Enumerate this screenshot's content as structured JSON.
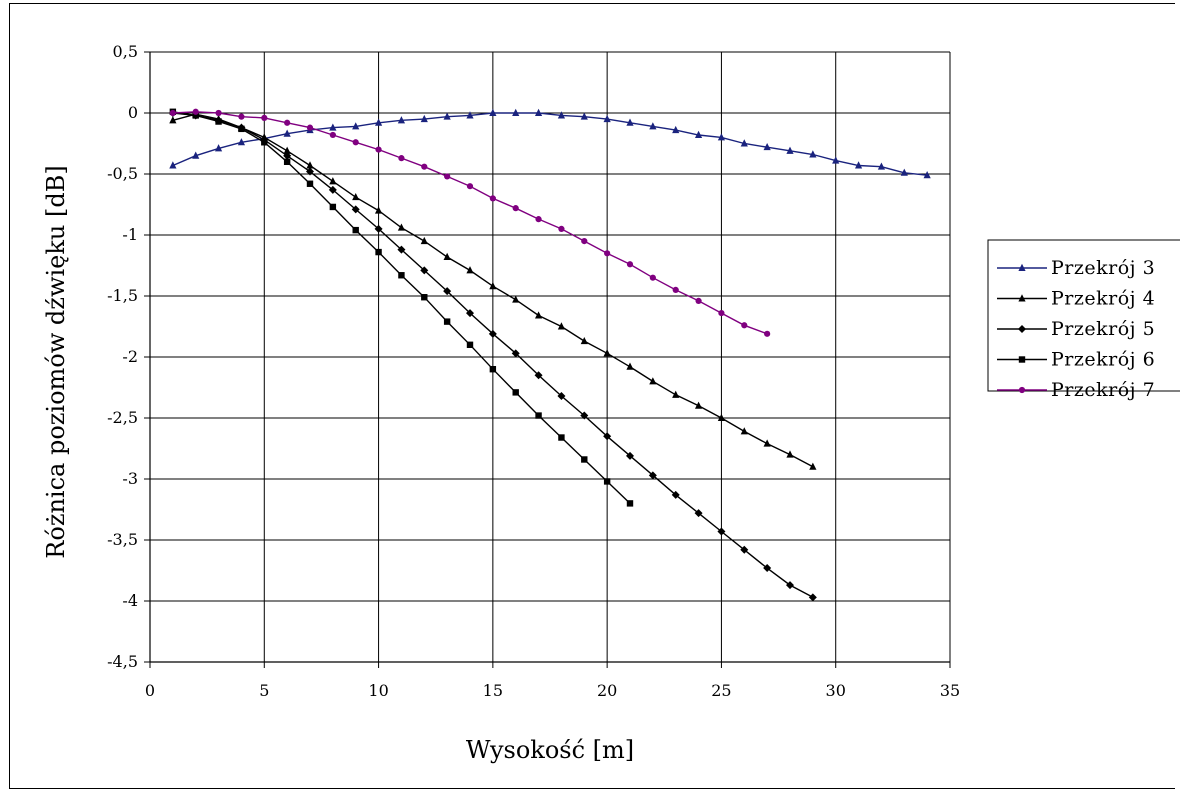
{
  "chart_data": {
    "type": "line",
    "title": "",
    "xlabel": "Wysokość [m]",
    "ylabel": "Różnica poziomów dźwięku [dB]",
    "xlim": [
      0,
      35
    ],
    "ylim": [
      -4.5,
      0.5
    ],
    "x_ticks": [
      0,
      5,
      10,
      15,
      20,
      25,
      30,
      35
    ],
    "x_tick_labels": [
      "0",
      "5",
      "10",
      "15",
      "20",
      "25",
      "30",
      "35"
    ],
    "y_ticks": [
      0.5,
      0,
      -0.5,
      -1,
      -1.5,
      -2,
      -2.5,
      -3,
      -3.5,
      -4,
      -4.5
    ],
    "y_tick_labels": [
      "0,5",
      "0",
      "-0,5",
      "-1",
      "-1,5",
      "-2",
      "-2,5",
      "-3",
      "-3,5",
      "-4",
      "-4,5"
    ],
    "grid": true,
    "legend_position": "right",
    "series": [
      {
        "name": "Przekrój 3",
        "color": "#1a237e",
        "marker": "triangle",
        "x": [
          1,
          2,
          3,
          4,
          5,
          6,
          7,
          8,
          9,
          10,
          11,
          12,
          13,
          14,
          15,
          16,
          17,
          18,
          19,
          20,
          21,
          22,
          23,
          24,
          25,
          26,
          27,
          28,
          29,
          30,
          31,
          32,
          33,
          34
        ],
        "y": [
          -0.43,
          -0.35,
          -0.29,
          -0.24,
          -0.21,
          -0.17,
          -0.14,
          -0.12,
          -0.11,
          -0.08,
          -0.06,
          -0.05,
          -0.03,
          -0.02,
          0.0,
          0.0,
          0.0,
          -0.02,
          -0.03,
          -0.05,
          -0.08,
          -0.11,
          -0.14,
          -0.18,
          -0.2,
          -0.25,
          -0.28,
          -0.31,
          -0.34,
          -0.39,
          -0.43,
          -0.44,
          -0.49,
          -0.51
        ]
      },
      {
        "name": "Przekrój 4",
        "color": "#000000",
        "marker": "triangle",
        "x": [
          1,
          2,
          3,
          4,
          5,
          6,
          7,
          8,
          9,
          10,
          11,
          12,
          13,
          14,
          15,
          16,
          17,
          18,
          19,
          20,
          21,
          22,
          23,
          24,
          25,
          26,
          27,
          28,
          29
        ],
        "y": [
          -0.06,
          -0.01,
          -0.05,
          -0.12,
          -0.2,
          -0.31,
          -0.43,
          -0.56,
          -0.69,
          -0.8,
          -0.94,
          -1.05,
          -1.18,
          -1.29,
          -1.42,
          -1.53,
          -1.66,
          -1.75,
          -1.87,
          -1.97,
          -2.08,
          -2.2,
          -2.31,
          -2.4,
          -2.5,
          -2.61,
          -2.71,
          -2.8,
          -2.9
        ]
      },
      {
        "name": "Przekrój 5",
        "color": "#000000",
        "marker": "diamond",
        "x": [
          1,
          2,
          3,
          4,
          5,
          6,
          7,
          8,
          9,
          10,
          11,
          12,
          13,
          14,
          15,
          16,
          17,
          18,
          19,
          20,
          21,
          22,
          23,
          24,
          25,
          26,
          27,
          28,
          29
        ],
        "y": [
          0.0,
          -0.02,
          -0.06,
          -0.12,
          -0.22,
          -0.35,
          -0.48,
          -0.63,
          -0.79,
          -0.95,
          -1.12,
          -1.29,
          -1.46,
          -1.64,
          -1.81,
          -1.97,
          -2.15,
          -2.32,
          -2.48,
          -2.65,
          -2.81,
          -2.97,
          -3.13,
          -3.28,
          -3.43,
          -3.58,
          -3.73,
          -3.87,
          -3.97
        ]
      },
      {
        "name": "Przekrój 6",
        "color": "#000000",
        "marker": "square",
        "x": [
          1,
          2,
          3,
          4,
          5,
          6,
          7,
          8,
          9,
          10,
          11,
          12,
          13,
          14,
          15,
          16,
          17,
          18,
          19,
          20,
          21
        ],
        "y": [
          0.01,
          -0.02,
          -0.07,
          -0.13,
          -0.24,
          -0.4,
          -0.58,
          -0.77,
          -0.96,
          -1.14,
          -1.33,
          -1.51,
          -1.71,
          -1.9,
          -2.1,
          -2.29,
          -2.48,
          -2.66,
          -2.84,
          -3.02,
          -3.2
        ]
      },
      {
        "name": "Przekrój 7",
        "color": "#800080",
        "marker": "circle",
        "x": [
          1,
          2,
          3,
          4,
          5,
          6,
          7,
          8,
          9,
          10,
          11,
          12,
          13,
          14,
          15,
          16,
          17,
          18,
          19,
          20,
          21,
          22,
          23,
          24,
          25,
          26,
          27
        ],
        "y": [
          0.0,
          0.01,
          0.0,
          -0.03,
          -0.04,
          -0.08,
          -0.12,
          -0.18,
          -0.24,
          -0.3,
          -0.37,
          -0.44,
          -0.52,
          -0.6,
          -0.7,
          -0.78,
          -0.87,
          -0.95,
          -1.05,
          -1.15,
          -1.24,
          -1.35,
          -1.45,
          -1.54,
          -1.64,
          -1.74,
          -1.81
        ]
      }
    ]
  }
}
